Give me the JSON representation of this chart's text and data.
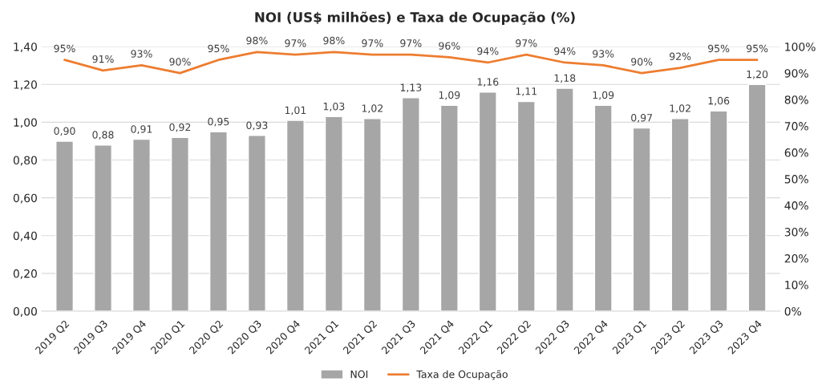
{
  "chart_data": {
    "type": "bar",
    "title": "NOI (US$ milhões) e Taxa de Ocupação (%)",
    "categories": [
      "2019 Q2",
      "2019 Q3",
      "2019 Q4",
      "2020 Q1",
      "2020 Q2",
      "2020 Q3",
      "2020 Q4",
      "2021 Q1",
      "2021 Q2",
      "2021 Q3",
      "2021 Q4",
      "2022 Q1",
      "2022 Q2",
      "2022 Q3",
      "2022 Q4",
      "2023 Q1",
      "2023 Q2",
      "2023 Q3",
      "2023 Q4"
    ],
    "series": [
      {
        "name": "NOI",
        "color": "#a6a6a6",
        "values": [
          0.9,
          0.88,
          0.91,
          0.92,
          0.95,
          0.93,
          1.01,
          1.03,
          1.02,
          1.13,
          1.09,
          1.16,
          1.11,
          1.18,
          1.09,
          0.97,
          1.02,
          1.06,
          1.2
        ],
        "value_labels": [
          "0,90",
          "0,88",
          "0,91",
          "0,92",
          "0,95",
          "0,93",
          "1,01",
          "1,03",
          "1,02",
          "1,13",
          "1,09",
          "1,16",
          "1,11",
          "1,18",
          "1,09",
          "0,97",
          "1,02",
          "1,06",
          "1,20"
        ]
      },
      {
        "name": "Taxa de Ocupação",
        "type": "line",
        "axis": "y2",
        "color": "#ed7d31",
        "values": [
          95,
          91,
          93,
          90,
          95,
          98,
          97,
          98,
          97,
          97,
          96,
          94,
          97,
          94,
          93,
          90,
          92,
          95,
          95
        ],
        "value_labels": [
          "95%",
          "91%",
          "93%",
          "90%",
          "95%",
          "98%",
          "97%",
          "98%",
          "97%",
          "97%",
          "96%",
          "94%",
          "97%",
          "94%",
          "93%",
          "90%",
          "92%",
          "95%",
          "95%"
        ]
      }
    ],
    "ylim": [
      0,
      1.4
    ],
    "yticks": [
      {
        "value": 0,
        "label": "0,00"
      },
      {
        "value": 0.2,
        "label": "0,20"
      },
      {
        "value": 0.4,
        "label": "0,40"
      },
      {
        "value": 0.6,
        "label": "0,60"
      },
      {
        "value": 0.8,
        "label": "0,80"
      },
      {
        "value": 1.0,
        "label": "1,00"
      },
      {
        "value": 1.2,
        "label": "1,20"
      },
      {
        "value": 1.4,
        "label": "1,40"
      }
    ],
    "y2lim": [
      0,
      100
    ],
    "y2ticks": [
      {
        "value": 0,
        "label": "0%"
      },
      {
        "value": 10,
        "label": "10%"
      },
      {
        "value": 20,
        "label": "20%"
      },
      {
        "value": 30,
        "label": "30%"
      },
      {
        "value": 40,
        "label": "40%"
      },
      {
        "value": 50,
        "label": "50%"
      },
      {
        "value": 60,
        "label": "60%"
      },
      {
        "value": 70,
        "label": "70%"
      },
      {
        "value": 80,
        "label": "80%"
      },
      {
        "value": 90,
        "label": "90%"
      },
      {
        "value": 100,
        "label": "100%"
      }
    ],
    "grid": "y",
    "legend": "bottom",
    "marker": "none",
    "line_style": "solid"
  }
}
